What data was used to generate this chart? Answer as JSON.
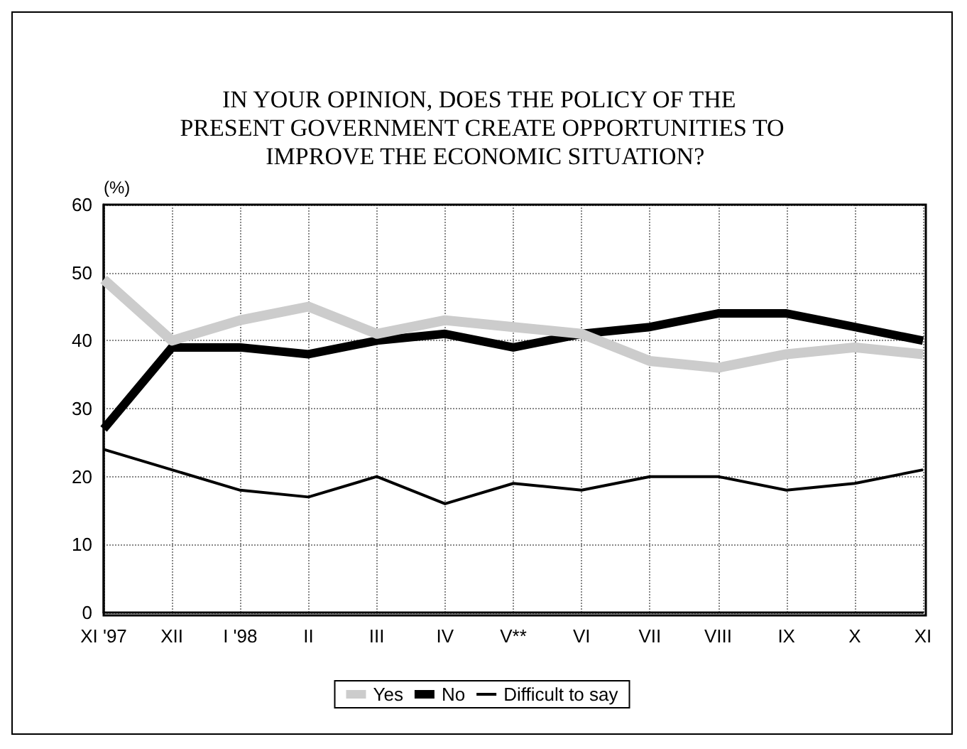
{
  "chart_data": {
    "type": "line",
    "title": "IN YOUR OPINION, DOES THE POLICY OF THE PRESENT GOVERNMENT CREATE OPPORTUNITIES TO IMPROVE THE ECONOMIC SITUATION?",
    "ylabel": "(%)",
    "categories": [
      "XI '97",
      "XII",
      "I '98",
      "II",
      "III",
      "IV",
      "V**",
      "VI",
      "VII",
      "VIII",
      "IX",
      "X",
      "XI"
    ],
    "series": [
      {
        "name": "Yes",
        "color": "#cccccc",
        "values": [
          49,
          40,
          43,
          45,
          41,
          43,
          42,
          41,
          37,
          36,
          38,
          39,
          38
        ]
      },
      {
        "name": "No",
        "color": "#000000",
        "values": [
          27,
          39,
          39,
          38,
          40,
          41,
          39,
          41,
          42,
          44,
          44,
          42,
          40
        ]
      },
      {
        "name": "Difficult to say",
        "color": "#000000",
        "values": [
          24,
          21,
          18,
          17,
          20,
          16,
          19,
          18,
          20,
          20,
          18,
          19,
          21
        ]
      }
    ],
    "ylim": [
      0,
      60
    ],
    "yticks": [
      0,
      10,
      20,
      30,
      40,
      50,
      60
    ],
    "grid": true,
    "legend": "bottom",
    "marker": "none",
    "line_style": "solid"
  }
}
